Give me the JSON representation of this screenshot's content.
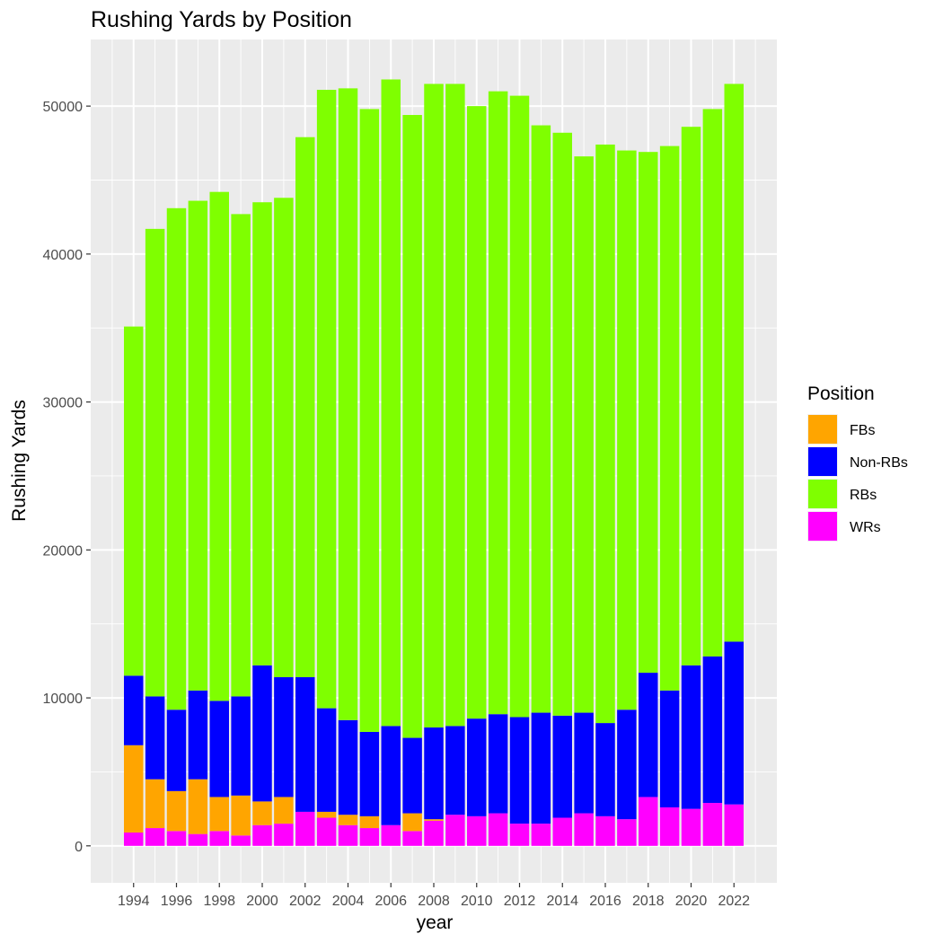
{
  "chart_data": {
    "type": "bar",
    "stacked": true,
    "title": "Rushing Yards by Position",
    "xlabel": "year",
    "ylabel": "Rushing Yards",
    "ylim": [
      -2500,
      54500
    ],
    "yticks": [
      0,
      10000,
      20000,
      30000,
      40000,
      50000
    ],
    "xlim": [
      1992,
      2024
    ],
    "xticks": [
      1994,
      1996,
      1998,
      2000,
      2002,
      2004,
      2006,
      2008,
      2010,
      2012,
      2014,
      2016,
      2018,
      2020,
      2022
    ],
    "grid": true,
    "legend": {
      "title": "Position",
      "position": "right"
    },
    "x": [
      1994,
      1995,
      1996,
      1997,
      1998,
      1999,
      2000,
      2001,
      2002,
      2003,
      2004,
      2005,
      2006,
      2007,
      2008,
      2009,
      2010,
      2011,
      2012,
      2013,
      2014,
      2015,
      2016,
      2017,
      2018,
      2019,
      2020,
      2021,
      2022
    ],
    "series": [
      {
        "name": "FBs",
        "color": "#FFA500",
        "values": [
          5900,
          3300,
          2700,
          3700,
          2300,
          2700,
          1600,
          1800,
          0,
          400,
          700,
          800,
          0,
          1200,
          100,
          0,
          0,
          0,
          0,
          0,
          0,
          0,
          0,
          0,
          0,
          0,
          0,
          0,
          0
        ]
      },
      {
        "name": "Non-RBs",
        "color": "#0000FF",
        "values": [
          4700,
          5600,
          5500,
          6000,
          6500,
          6700,
          9200,
          8100,
          9100,
          7000,
          6400,
          5700,
          6700,
          5100,
          6200,
          6000,
          6600,
          6700,
          7200,
          7500,
          6900,
          6800,
          6300,
          7400,
          8400,
          7900,
          9700,
          9900,
          11000
        ]
      },
      {
        "name": "RBs",
        "color": "#7FFF00",
        "values": [
          23600,
          31600,
          33900,
          33100,
          34400,
          32600,
          31300,
          32400,
          36500,
          41800,
          42700,
          42100,
          43700,
          42100,
          43500,
          43400,
          41400,
          42100,
          42000,
          39700,
          39400,
          37600,
          39100,
          37800,
          35200,
          36800,
          36400,
          37000,
          37700
        ]
      },
      {
        "name": "WRs",
        "color": "#FF00FF",
        "values": [
          900,
          1200,
          1000,
          800,
          1000,
          700,
          1400,
          1500,
          2300,
          1900,
          1400,
          1200,
          1400,
          1000,
          1700,
          2100,
          2000,
          2200,
          1500,
          1500,
          1900,
          2200,
          2000,
          1800,
          3300,
          2600,
          2500,
          2900,
          2800
        ]
      }
    ],
    "stack_order_bottom_to_top": [
      "WRs",
      "FBs",
      "Non-RBs",
      "RBs"
    ]
  }
}
